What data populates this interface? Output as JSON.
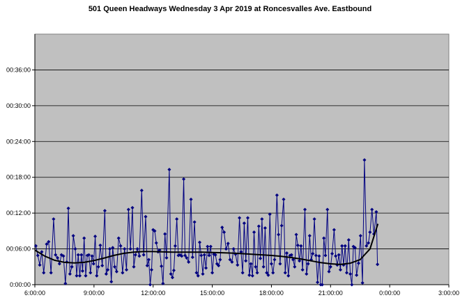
{
  "chart_data": {
    "type": "line",
    "title": "501 Queen Headways Wednesday 3 Apr 2019 at Roncesvalles Ave. Eastbound",
    "xlabel": "",
    "ylabel": "",
    "x_unit": "hours since 0:00 (values beyond 24 are after midnight)",
    "y_unit": "minutes",
    "xlim": [
      6,
      27
    ],
    "ylim": [
      0,
      42
    ],
    "x_ticks": [
      "6:00:00",
      "9:00:00",
      "12:00:00",
      "15:00:00",
      "18:00:00",
      "21:00:00",
      "0:00:00",
      "3:00:00"
    ],
    "y_ticks": [
      "0:00:00",
      "00:06:00",
      "00:12:00",
      "00:18:00",
      "00:24:00",
      "00:30:00",
      "00:36:00"
    ],
    "grid": "horizontal",
    "legend": "none",
    "colors": {
      "plot_bg": "#c0c0c0",
      "series": "#000080",
      "trend": "#000000",
      "grid": "#000000"
    },
    "series": [
      {
        "values": [
          [
            6.05,
            6.5
          ],
          [
            6.15,
            4.9
          ],
          [
            6.25,
            3.3
          ],
          [
            6.35,
            5.5
          ],
          [
            6.45,
            2.0
          ],
          [
            6.6,
            6.8
          ],
          [
            6.7,
            7.2
          ],
          [
            6.82,
            2.0
          ],
          [
            6.95,
            11.0
          ],
          [
            7.05,
            5.0
          ],
          [
            7.15,
            4.5
          ],
          [
            7.25,
            3.5
          ],
          [
            7.35,
            5.0
          ],
          [
            7.45,
            4.8
          ],
          [
            7.55,
            0.2
          ],
          [
            7.62,
            3.8
          ],
          [
            7.7,
            12.8
          ],
          [
            7.78,
            1.8
          ],
          [
            7.88,
            3.0
          ],
          [
            7.95,
            8.2
          ],
          [
            8.05,
            6.0
          ],
          [
            8.12,
            1.5
          ],
          [
            8.2,
            5.0
          ],
          [
            8.28,
            1.5
          ],
          [
            8.36,
            5.0
          ],
          [
            8.42,
            2.3
          ],
          [
            8.5,
            7.8
          ],
          [
            8.58,
            1.5
          ],
          [
            8.66,
            4.9
          ],
          [
            8.74,
            5.0
          ],
          [
            8.82,
            2.0
          ],
          [
            8.9,
            4.8
          ],
          [
            8.98,
            3.5
          ],
          [
            9.06,
            8.1
          ],
          [
            9.14,
            1.5
          ],
          [
            9.22,
            3.0
          ],
          [
            9.32,
            6.6
          ],
          [
            9.42,
            3.2
          ],
          [
            9.55,
            12.4
          ],
          [
            9.62,
            1.8
          ],
          [
            9.7,
            2.5
          ],
          [
            9.8,
            6.0
          ],
          [
            9.88,
            0.5
          ],
          [
            9.95,
            6.2
          ],
          [
            10.05,
            3.0
          ],
          [
            10.15,
            2.2
          ],
          [
            10.25,
            7.8
          ],
          [
            10.35,
            6.5
          ],
          [
            10.45,
            2.0
          ],
          [
            10.55,
            6.0
          ],
          [
            10.65,
            2.5
          ],
          [
            10.75,
            12.6
          ],
          [
            10.85,
            6.0
          ],
          [
            10.95,
            12.9
          ],
          [
            11.02,
            3.0
          ],
          [
            11.1,
            5.0
          ],
          [
            11.2,
            6.0
          ],
          [
            11.3,
            4.8
          ],
          [
            11.42,
            15.8
          ],
          [
            11.52,
            5.0
          ],
          [
            11.62,
            11.4
          ],
          [
            11.7,
            3.2
          ],
          [
            11.78,
            4.2
          ],
          [
            11.85,
            0.0
          ],
          [
            11.92,
            2.5
          ],
          [
            12.0,
            9.2
          ],
          [
            12.08,
            9.0
          ],
          [
            12.16,
            7.0
          ],
          [
            12.25,
            5.5
          ],
          [
            12.33,
            5.8
          ],
          [
            12.42,
            3.1
          ],
          [
            12.5,
            0.2
          ],
          [
            12.6,
            8.5
          ],
          [
            12.68,
            4.5
          ],
          [
            12.82,
            19.3
          ],
          [
            12.9,
            1.8
          ],
          [
            12.98,
            1.2
          ],
          [
            13.05,
            2.4
          ],
          [
            13.12,
            6.5
          ],
          [
            13.2,
            11.0
          ],
          [
            13.28,
            4.9
          ],
          [
            13.36,
            5.0
          ],
          [
            13.45,
            4.8
          ],
          [
            13.55,
            17.7
          ],
          [
            13.62,
            4.9
          ],
          [
            13.7,
            4.5
          ],
          [
            13.8,
            3.8
          ],
          [
            13.92,
            14.3
          ],
          [
            14.0,
            4.6
          ],
          [
            14.1,
            10.5
          ],
          [
            14.2,
            2.0
          ],
          [
            14.28,
            1.5
          ],
          [
            14.36,
            7.1
          ],
          [
            14.44,
            4.9
          ],
          [
            14.52,
            1.8
          ],
          [
            14.6,
            5.0
          ],
          [
            14.68,
            2.8
          ],
          [
            14.76,
            6.4
          ],
          [
            14.84,
            4.9
          ],
          [
            14.92,
            6.4
          ],
          [
            15.0,
            2.0
          ],
          [
            15.08,
            5.1
          ],
          [
            15.16,
            5.0
          ],
          [
            15.24,
            3.5
          ],
          [
            15.32,
            3.2
          ],
          [
            15.4,
            4.2
          ],
          [
            15.5,
            9.6
          ],
          [
            15.6,
            8.8
          ],
          [
            15.7,
            6.0
          ],
          [
            15.8,
            6.9
          ],
          [
            15.9,
            4.2
          ],
          [
            16.0,
            3.8
          ],
          [
            16.08,
            6.0
          ],
          [
            16.18,
            5.1
          ],
          [
            16.28,
            3.3
          ],
          [
            16.38,
            11.2
          ],
          [
            16.46,
            5.5
          ],
          [
            16.54,
            2.0
          ],
          [
            16.62,
            10.3
          ],
          [
            16.7,
            4.0
          ],
          [
            16.8,
            11.2
          ],
          [
            16.88,
            1.6
          ],
          [
            16.96,
            3.5
          ],
          [
            17.04,
            1.5
          ],
          [
            17.12,
            8.8
          ],
          [
            17.2,
            3.0
          ],
          [
            17.28,
            2.0
          ],
          [
            17.36,
            9.8
          ],
          [
            17.44,
            4.4
          ],
          [
            17.52,
            11.0
          ],
          [
            17.6,
            3.0
          ],
          [
            17.68,
            9.5
          ],
          [
            17.76,
            2.0
          ],
          [
            17.84,
            1.6
          ],
          [
            17.92,
            11.8
          ],
          [
            18.0,
            3.5
          ],
          [
            18.08,
            2.0
          ],
          [
            18.16,
            4.2
          ],
          [
            18.28,
            15.0
          ],
          [
            18.36,
            8.4
          ],
          [
            18.44,
            3.5
          ],
          [
            18.52,
            9.9
          ],
          [
            18.62,
            14.3
          ],
          [
            18.7,
            2.0
          ],
          [
            18.78,
            5.3
          ],
          [
            18.86,
            1.5
          ],
          [
            18.94,
            4.9
          ],
          [
            19.02,
            5.0
          ],
          [
            19.1,
            4.2
          ],
          [
            19.18,
            3.0
          ],
          [
            19.26,
            8.4
          ],
          [
            19.34,
            6.6
          ],
          [
            19.42,
            4.0
          ],
          [
            19.5,
            6.5
          ],
          [
            19.58,
            2.5
          ],
          [
            19.7,
            12.6
          ],
          [
            19.78,
            1.8
          ],
          [
            19.86,
            3.5
          ],
          [
            19.94,
            8.2
          ],
          [
            20.02,
            4.2
          ],
          [
            20.1,
            5.2
          ],
          [
            20.18,
            11.0
          ],
          [
            20.26,
            4.9
          ],
          [
            20.34,
            0.4
          ],
          [
            20.42,
            4.8
          ],
          [
            20.5,
            0.0
          ],
          [
            20.58,
            0.0
          ],
          [
            20.66,
            7.8
          ],
          [
            20.74,
            4.9
          ],
          [
            20.84,
            12.6
          ],
          [
            20.92,
            2.2
          ],
          [
            21.0,
            3.0
          ],
          [
            21.08,
            5.2
          ],
          [
            21.18,
            9.2
          ],
          [
            21.26,
            4.8
          ],
          [
            21.34,
            3.3
          ],
          [
            21.42,
            5.0
          ],
          [
            21.5,
            2.5
          ],
          [
            21.58,
            6.5
          ],
          [
            21.66,
            3.3
          ],
          [
            21.74,
            6.5
          ],
          [
            21.82,
            2.0
          ],
          [
            21.92,
            7.5
          ],
          [
            22.0,
            1.8
          ],
          [
            22.08,
            0.0
          ],
          [
            22.16,
            6.4
          ],
          [
            22.24,
            6.2
          ],
          [
            22.32,
            1.6
          ],
          [
            22.42,
            3.6
          ],
          [
            22.52,
            8.2
          ],
          [
            22.62,
            0.3
          ],
          [
            22.72,
            20.9
          ],
          [
            22.82,
            6.5
          ],
          [
            22.92,
            7.0
          ],
          [
            23.0,
            8.8
          ],
          [
            23.1,
            12.6
          ],
          [
            23.2,
            8.5
          ],
          [
            23.32,
            12.2
          ],
          [
            23.38,
            3.4
          ]
        ]
      }
    ],
    "trend": {
      "type": "polynomial",
      "values": [
        [
          6.0,
          5.8
        ],
        [
          6.5,
          4.8
        ],
        [
          7.0,
          4.1
        ],
        [
          7.5,
          3.75
        ],
        [
          8.0,
          3.65
        ],
        [
          8.5,
          3.75
        ],
        [
          9.0,
          4.05
        ],
        [
          9.5,
          4.45
        ],
        [
          10.0,
          4.9
        ],
        [
          10.5,
          5.25
        ],
        [
          11.0,
          5.45
        ],
        [
          11.5,
          5.55
        ],
        [
          12.0,
          5.55
        ],
        [
          12.5,
          5.5
        ],
        [
          13.0,
          5.45
        ],
        [
          13.5,
          5.45
        ],
        [
          14.0,
          5.45
        ],
        [
          14.5,
          5.45
        ],
        [
          15.0,
          5.4
        ],
        [
          15.5,
          5.35
        ],
        [
          16.0,
          5.3
        ],
        [
          16.5,
          5.2
        ],
        [
          17.0,
          5.1
        ],
        [
          17.5,
          5.0
        ],
        [
          18.0,
          4.9
        ],
        [
          18.5,
          4.75
        ],
        [
          19.0,
          4.55
        ],
        [
          19.5,
          4.3
        ],
        [
          20.0,
          4.0
        ],
        [
          20.5,
          3.7
        ],
        [
          21.0,
          3.5
        ],
        [
          21.5,
          3.4
        ],
        [
          22.0,
          3.6
        ],
        [
          22.5,
          4.2
        ],
        [
          23.0,
          6.0
        ],
        [
          23.4,
          10.2
        ]
      ]
    }
  }
}
